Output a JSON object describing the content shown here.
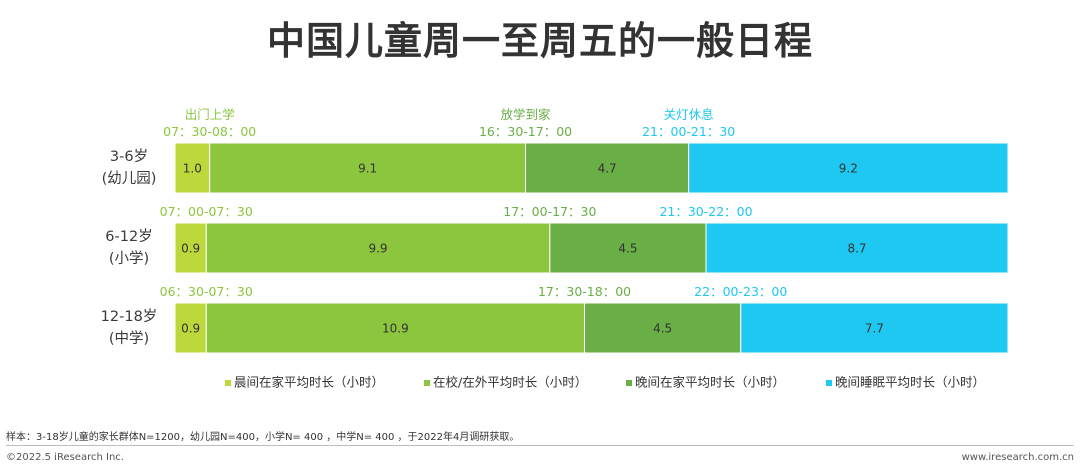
{
  "title": "中国儿童周一至周五的一般日程",
  "chart_data": {
    "type": "bar",
    "orientation": "horizontal",
    "stacked": true,
    "categories": [
      "3-6岁\n(幼儿园)",
      "6-12岁\n(小学)",
      "12-18岁\n(中学)"
    ],
    "series": [
      {
        "name": "晨间在家平均时长（小时）",
        "values": [
          1.0,
          0.9,
          0.9
        ],
        "labels": [
          "1.0",
          "0.9",
          "0.9"
        ],
        "color": "#bdd83a"
      },
      {
        "name": "在校/在外平均时长（小时）",
        "values": [
          9.1,
          9.9,
          10.9
        ],
        "labels": [
          "9.1",
          "9.9",
          "10.9"
        ],
        "color": "#8cc63f"
      },
      {
        "name": "晚间在家平均时长（小时）",
        "values": [
          4.7,
          4.5,
          4.5
        ],
        "labels": [
          "4.7",
          "4.5",
          "4.5"
        ],
        "color": "#6aae46"
      },
      {
        "name": "晚间睡眠平均时长（小时）",
        "values": [
          9.2,
          8.7,
          7.7
        ],
        "labels": [
          "9.2",
          "8.7",
          "7.7"
        ],
        "color": "#1fc8f0"
      }
    ],
    "legend_position": "bottom",
    "boundary_headers": [
      "出门上学",
      "放学到家",
      "关灯休息"
    ],
    "boundary_times": [
      [
        "07：30-08：00",
        "16：30-17：00",
        "21：00-21：30"
      ],
      [
        "07：00-07：30",
        "17：00-17：30",
        "21：30-22：00"
      ],
      [
        "06：30-07：30",
        "17：30-18：00",
        "22：00-23：00"
      ]
    ],
    "time_colors": [
      "#8cc63f",
      "#6aae46",
      "#1fc8f0"
    ]
  },
  "footnote": "样本：3-18岁儿童的家长群体N=1200，幼儿园N=400，小学N= 400 ，中学N= 400 ，于2022年4月调研获取。",
  "copyright": "©2022.5 iResearch Inc.",
  "website": "www.iresearch.com.cn"
}
